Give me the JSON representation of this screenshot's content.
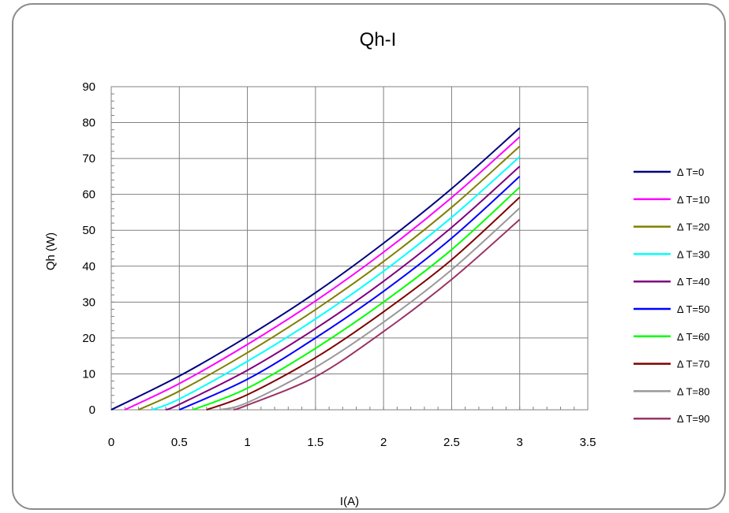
{
  "chart_data": {
    "type": "line",
    "title": "Qh-I",
    "xlabel": "I(A)",
    "ylabel": "Qh (W)",
    "xlim": [
      0,
      3.5
    ],
    "ylim": [
      0,
      90
    ],
    "x_ticks": [
      "0",
      "0.5",
      "1",
      "1.5",
      "2",
      "2.5",
      "3",
      "3.5"
    ],
    "y_ticks": [
      "0",
      "10",
      "20",
      "30",
      "40",
      "50",
      "60",
      "70",
      "80",
      "90"
    ],
    "grid": true,
    "legend_position": "right",
    "series": [
      {
        "name": "Δ T=0",
        "color": "#000080",
        "x": [
          0,
          0.5,
          1,
          1.5,
          2,
          2.5,
          3
        ],
        "y": [
          0,
          9.4,
          20.4,
          32.6,
          46.4,
          61.6,
          78.5
        ]
      },
      {
        "name": "Δ T=10",
        "color": "#ff00ff",
        "x": [
          0.1,
          0.5,
          1,
          1.5,
          2,
          2.5,
          3
        ],
        "y": [
          0,
          7.3,
          18.2,
          30.3,
          43.9,
          59.1,
          76.0
        ]
      },
      {
        "name": "Δ T=20",
        "color": "#808000",
        "x": [
          0.2,
          0.5,
          1,
          1.5,
          2,
          2.5,
          3
        ],
        "y": [
          0,
          5.2,
          15.9,
          27.9,
          41.3,
          56.4,
          73.4
        ]
      },
      {
        "name": "Δ T=30",
        "color": "#00ffff",
        "x": [
          0.3,
          0.5,
          1,
          1.5,
          2,
          2.5,
          3
        ],
        "y": [
          0,
          3.0,
          13.5,
          25.3,
          38.6,
          53.6,
          70.5
        ]
      },
      {
        "name": "Δ T=40",
        "color": "#800080",
        "x": [
          0.4,
          0.5,
          1,
          1.5,
          2,
          2.5,
          3
        ],
        "y": [
          0,
          1.5,
          11.0,
          22.6,
          35.8,
          50.8,
          67.8
        ]
      },
      {
        "name": "Δ T=50",
        "color": "#0000ff",
        "x": [
          0.5,
          1,
          1.5,
          2,
          2.5,
          3
        ],
        "y": [
          0,
          8.5,
          20.0,
          33.0,
          47.8,
          65.0
        ]
      },
      {
        "name": "Δ T=60",
        "color": "#00ff00",
        "x": [
          0.6,
          1,
          1.5,
          2,
          2.5,
          3
        ],
        "y": [
          0,
          6.0,
          17.1,
          30.0,
          44.6,
          62.0
        ]
      },
      {
        "name": "Δ T=70",
        "color": "#800000",
        "x": [
          0.7,
          1,
          1.5,
          2,
          2.5,
          3
        ],
        "y": [
          0,
          4.2,
          14.5,
          27.3,
          41.8,
          59.2
        ]
      },
      {
        "name": "Δ T=80",
        "color": "#999999",
        "x": [
          0.8,
          1,
          1.5,
          2,
          2.5,
          3
        ],
        "y": [
          0,
          2.0,
          11.8,
          24.4,
          39.0,
          56.2
        ]
      },
      {
        "name": "Δ T=90",
        "color": "#993366",
        "x": [
          0.9,
          1,
          1.5,
          2,
          2.5,
          3
        ],
        "y": [
          0,
          1.3,
          9.2,
          21.8,
          36.3,
          53.0
        ]
      }
    ]
  }
}
